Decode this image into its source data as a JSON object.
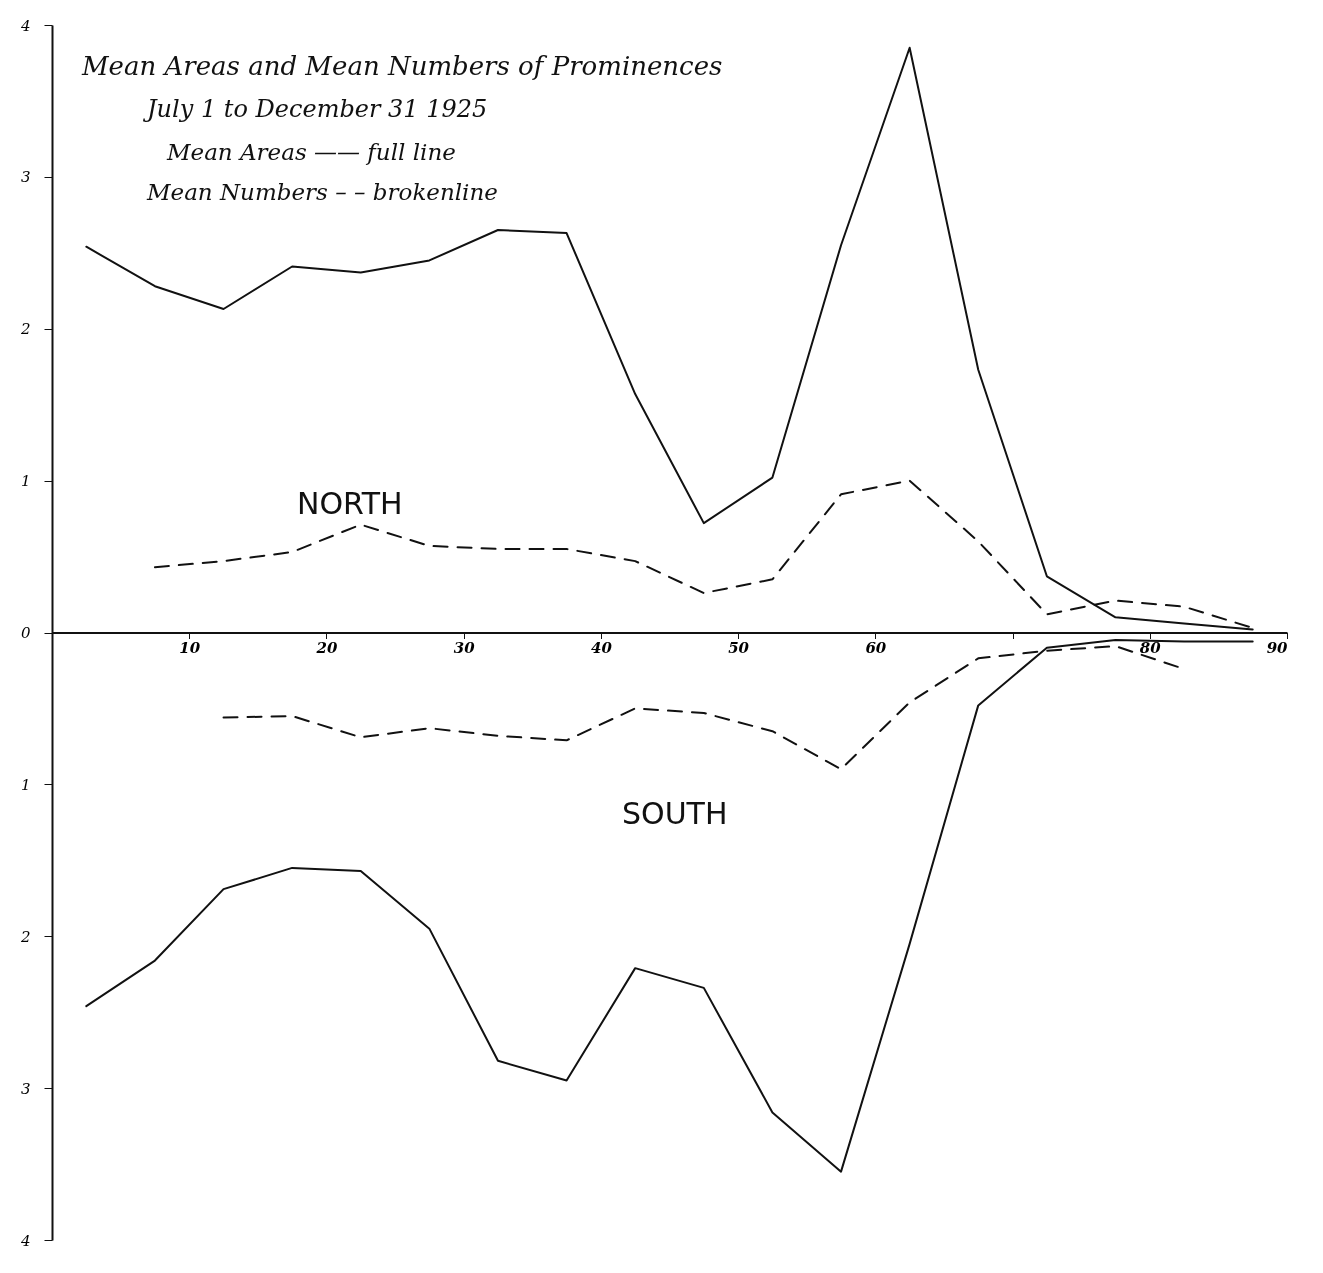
{
  "chart_data": {
    "type": "line",
    "title": "Mean Areas and Mean Numbers of Prominences",
    "subtitle": "July 1 to December 31 1925",
    "annotations": [
      "Mean Areas —— full line",
      "Mean Numbers – – brokenline",
      "NORTH",
      "SOUTH"
    ],
    "x": [
      2.5,
      7.5,
      12.5,
      17.5,
      22.5,
      27.5,
      32.5,
      37.5,
      42.5,
      47.5,
      52.5,
      57.5,
      62.5,
      67.5,
      72.5,
      77.5,
      82.5,
      87.5
    ],
    "series": [
      {
        "color": "#111111",
        "line_style": "solid",
        "values": [
          2.54,
          2.28,
          2.13,
          2.41,
          2.37,
          2.45,
          2.65,
          2.63,
          1.57,
          0.72,
          1.02,
          2.55,
          3.85,
          1.73,
          0.37,
          0.1,
          0.06,
          0.02
        ]
      },
      {
        "color": "#111111",
        "line_style": "dashed",
        "values": [
          null,
          0.43,
          0.47,
          0.53,
          0.71,
          0.57,
          0.55,
          0.55,
          0.47,
          0.26,
          0.35,
          0.91,
          1.0,
          0.6,
          0.12,
          0.21,
          0.17,
          0.03
        ]
      },
      {
        "color": "#111111",
        "line_style": "solid",
        "values": [
          -2.46,
          -2.16,
          -1.69,
          -1.55,
          -1.57,
          -1.95,
          -2.82,
          -2.95,
          -2.21,
          -2.34,
          -3.16,
          -3.55,
          -2.05,
          -0.48,
          -0.1,
          -0.05,
          -0.06,
          -0.06
        ]
      },
      {
        "color": "#111111",
        "line_style": "dashed",
        "values": [
          null,
          null,
          -0.56,
          -0.55,
          -0.69,
          -0.63,
          -0.68,
          -0.71,
          -0.5,
          -0.53,
          -0.65,
          -0.9,
          -0.46,
          -0.17,
          -0.12,
          -0.09,
          -0.24,
          null
        ]
      }
    ],
    "xlim": [
      0,
      90
    ],
    "xticks": [
      10,
      20,
      30,
      40,
      50,
      60,
      {
        "value": 70,
        "label": null
      },
      80,
      90
    ],
    "ylim": [
      -4,
      4
    ],
    "yticks": [
      {
        "value": -4,
        "label": "4"
      },
      {
        "value": -3,
        "label": "3"
      },
      {
        "value": -2,
        "label": "2"
      },
      {
        "value": -1,
        "label": "1"
      },
      0,
      1,
      2,
      3,
      4
    ],
    "grid": false,
    "marker": "none"
  }
}
